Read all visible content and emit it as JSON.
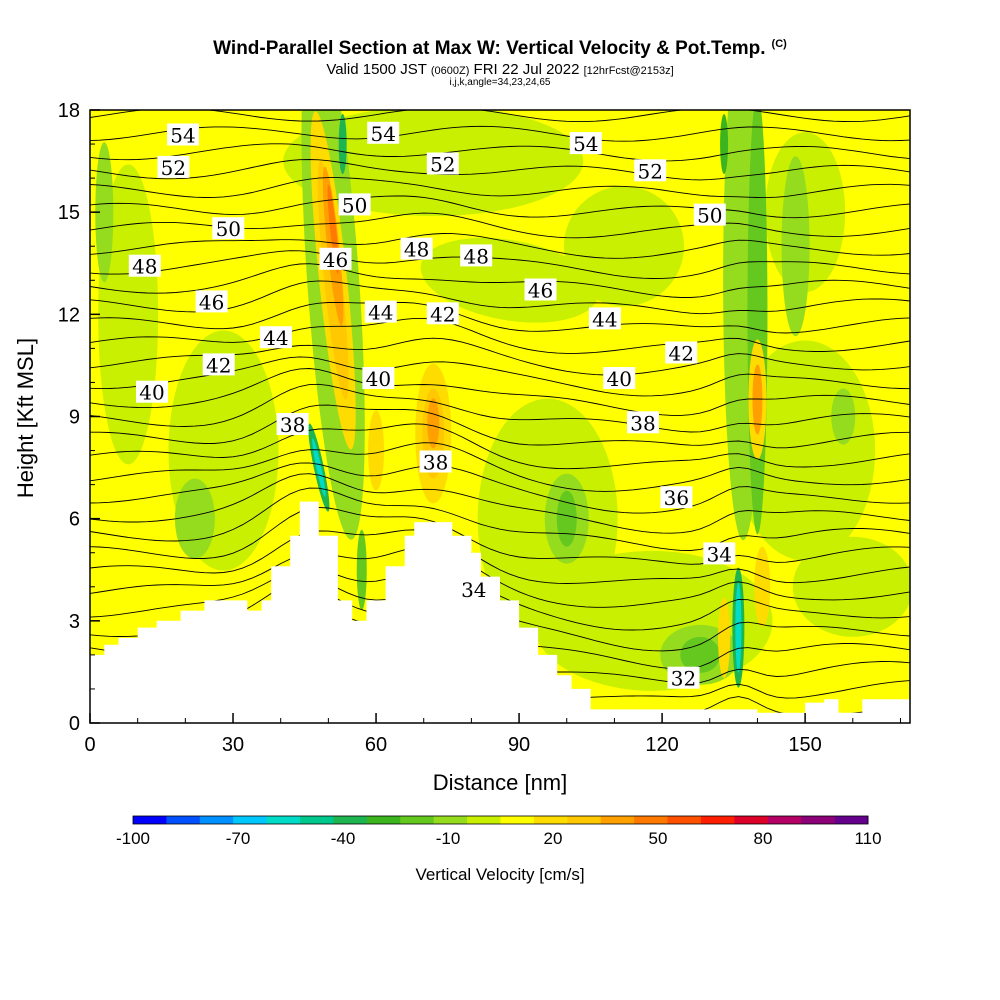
{
  "header": {
    "title": "Wind-Parallel Section at Max W: Vertical Velocity & Pot.Temp.",
    "copyright": "(C)",
    "subtitle_prefix": "Valid 1500 JST",
    "subtitle_utc": "(0600Z)",
    "subtitle_date": "FRI 22 Jul 2022",
    "subtitle_fcst": "[12hrFcst@2153z]",
    "grid_info": "i,j,k,angle=34,23,24,65"
  },
  "chart_data": {
    "type": "heatmap",
    "xlabel": "Distance [nm]",
    "ylabel": "Height [Kft MSL]",
    "xlim": [
      0,
      172
    ],
    "ylim": [
      0,
      18
    ],
    "x_ticks": [
      0,
      30,
      60,
      90,
      120,
      150
    ],
    "y_ticks": [
      0,
      3,
      6,
      9,
      12,
      15,
      18
    ],
    "colorbar": {
      "title": "Vertical Velocity [cm/s]",
      "tick_labels": [
        -100,
        -70,
        -40,
        -10,
        20,
        50,
        80,
        110
      ],
      "bounds": [
        -100,
        110
      ],
      "step": 10,
      "colors": [
        "#0000ff",
        "#0050ff",
        "#0090ff",
        "#00c8ff",
        "#00dcc8",
        "#00c88c",
        "#1eb450",
        "#3cb41e",
        "#64c81e",
        "#96dc1e",
        "#c8f000",
        "#ffff00",
        "#ffdc00",
        "#ffc800",
        "#ffa000",
        "#ff7800",
        "#ff5000",
        "#ff1e00",
        "#dc0028",
        "#b40064",
        "#8c0078",
        "#64008c"
      ]
    },
    "theta_contour_labels": [
      {
        "value": 54,
        "x": 19.5,
        "y": 17.25
      },
      {
        "value": 52,
        "x": 17.5,
        "y": 16.3
      },
      {
        "value": 50,
        "x": 29,
        "y": 14.5
      },
      {
        "value": 48,
        "x": 11.5,
        "y": 13.4
      },
      {
        "value": 46,
        "x": 25.5,
        "y": 12.35
      },
      {
        "value": 44,
        "x": 39,
        "y": 11.3
      },
      {
        "value": 42,
        "x": 27,
        "y": 10.5
      },
      {
        "value": 40,
        "x": 13,
        "y": 9.7
      },
      {
        "value": 38,
        "x": 42.5,
        "y": 8.75
      },
      {
        "value": 54,
        "x": 61.5,
        "y": 17.3
      },
      {
        "value": 50,
        "x": 55.5,
        "y": 15.2
      },
      {
        "value": 46,
        "x": 51.5,
        "y": 13.6
      },
      {
        "value": 48,
        "x": 68.5,
        "y": 13.9
      },
      {
        "value": 44,
        "x": 61,
        "y": 12.05
      },
      {
        "value": 40,
        "x": 60.5,
        "y": 10.1
      },
      {
        "value": 52,
        "x": 74,
        "y": 16.4
      },
      {
        "value": 48,
        "x": 81,
        "y": 13.7
      },
      {
        "value": 42,
        "x": 74,
        "y": 12.0
      },
      {
        "value": 38,
        "x": 72.5,
        "y": 7.65
      },
      {
        "value": 34,
        "x": 80.5,
        "y": 3.9
      },
      {
        "value": 46,
        "x": 94.5,
        "y": 12.7
      },
      {
        "value": 54,
        "x": 104,
        "y": 17.0
      },
      {
        "value": 52,
        "x": 117.5,
        "y": 16.2
      },
      {
        "value": 44,
        "x": 108,
        "y": 11.85
      },
      {
        "value": 40,
        "x": 111,
        "y": 10.1
      },
      {
        "value": 42,
        "x": 124,
        "y": 10.85
      },
      {
        "value": 38,
        "x": 116,
        "y": 8.8
      },
      {
        "value": 36,
        "x": 123,
        "y": 6.6
      },
      {
        "value": 50,
        "x": 130,
        "y": 14.9
      },
      {
        "value": 34,
        "x": 132,
        "y": 4.95
      },
      {
        "value": 32,
        "x": 124.5,
        "y": 1.3
      }
    ]
  }
}
